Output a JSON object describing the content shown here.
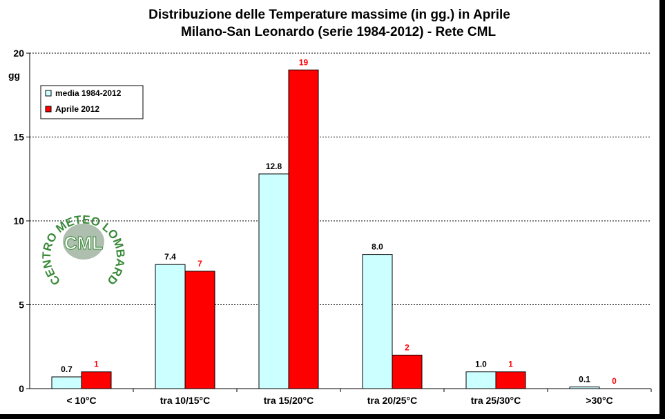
{
  "chart_data": {
    "type": "bar",
    "title": "Distribuzione  delle  Temperature  massime  (in gg.) in Aprile",
    "subtitle": "Milano-San  Leonardo  (serie  1984-2012)  - Rete CML",
    "ylabel": "gg",
    "xlabel": "",
    "ylim": [
      0,
      20
    ],
    "yticks": [
      0,
      5,
      10,
      15,
      20
    ],
    "grid": true,
    "legend_placement": "top-left",
    "categories": [
      "< 10°C",
      "tra 10/15°C",
      "tra 15/20°C",
      "tra 20/25°C",
      "tra 25/30°C",
      ">30°C"
    ],
    "series": [
      {
        "name": "media 1984-2012",
        "values": [
          0.7,
          7.4,
          12.8,
          8.0,
          1.0,
          0.1
        ],
        "labels": [
          "0.7",
          "7.4",
          "12.8",
          "8.0",
          "1.0",
          "0.1"
        ],
        "color": "#CCFFFF",
        "label_color": "#000000"
      },
      {
        "name": "Aprile 2012",
        "values": [
          1,
          7,
          19,
          2,
          1,
          0
        ],
        "labels": [
          "1",
          "7",
          "19",
          "2",
          "1",
          "0"
        ],
        "color": "#FF0000",
        "label_color": "#FF0000"
      }
    ]
  },
  "logo": {
    "arc_text": "CENTRO METEO LOMBARDO",
    "center_text": "CML",
    "color": "#3A8A3A"
  }
}
